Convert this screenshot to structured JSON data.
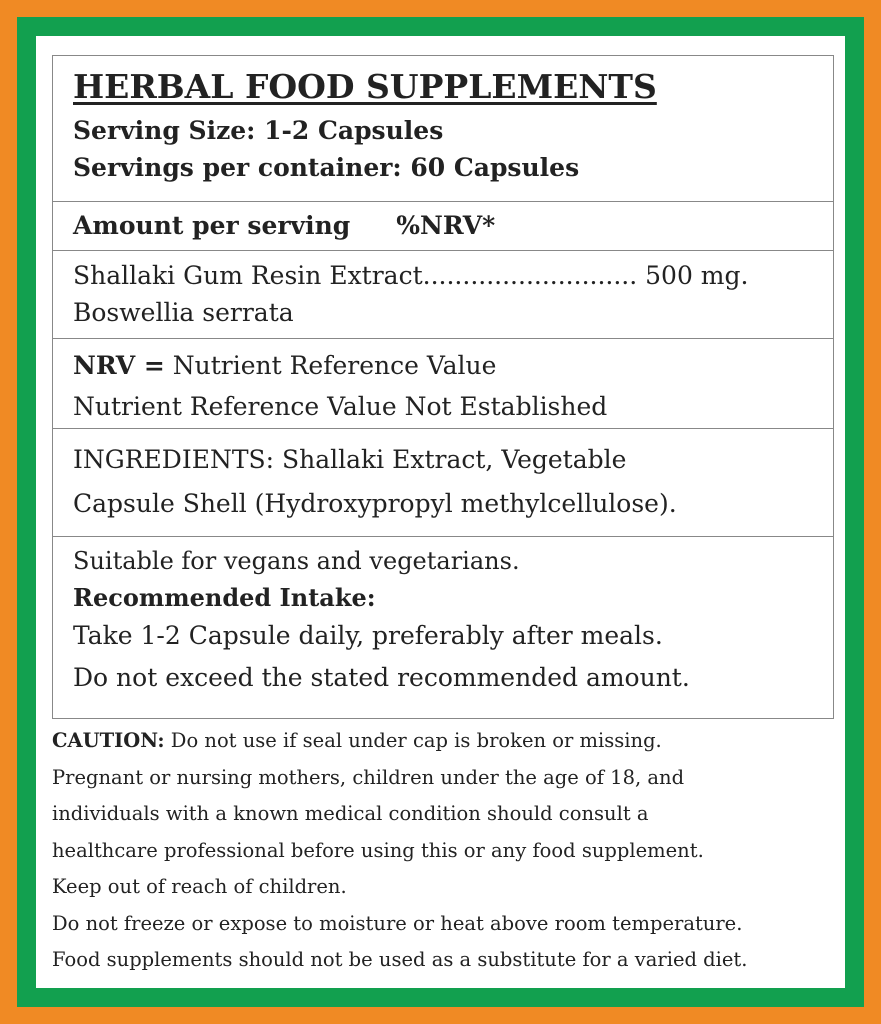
{
  "border_colors": {
    "outer": "#f08a24",
    "inner": "#12a04f"
  },
  "title": "HERBAL FOOD SUPPLEMENTS",
  "serving_size": "Serving Size: 1-2 Capsules",
  "servings_per_container": "Servings per container: 60 Capsules",
  "amount_header": {
    "label": "Amount per serving",
    "nrv": "%NRV*"
  },
  "ingredient": {
    "line": "Shallaki Gum Resin Extract........................... 500 mg.",
    "latin": "Boswellia serrata"
  },
  "nrv": {
    "label": "NRV =",
    "definition": " Nutrient Reference Value",
    "note": "Nutrient Reference Value Not Established"
  },
  "ingredients": {
    "line1": "INGREDIENTS: Shallaki Extract, Vegetable",
    "line2": "Capsule Shell (Hydroxypropyl methylcellulose)."
  },
  "usage": {
    "suitable": "Suitable for vegans and vegetarians.",
    "intake_label": "Recommended Intake:",
    "intake": "Take 1-2 Capsule daily, preferably after meals.",
    "warning": "Do not exceed the stated recommended amount."
  },
  "caution": {
    "label": "CAUTION:",
    "lines": [
      " Do not use if seal under cap is broken or missing.",
      "Pregnant or nursing mothers, children under the age of 18, and",
      "individuals with a known medical condition should consult a",
      "healthcare professional before using this or any food supplement.",
      "Keep out of reach of children.",
      "Do not freeze or expose to moisture or heat above room temperature.",
      "Food supplements should not be used as a substitute for a varied diet."
    ]
  }
}
